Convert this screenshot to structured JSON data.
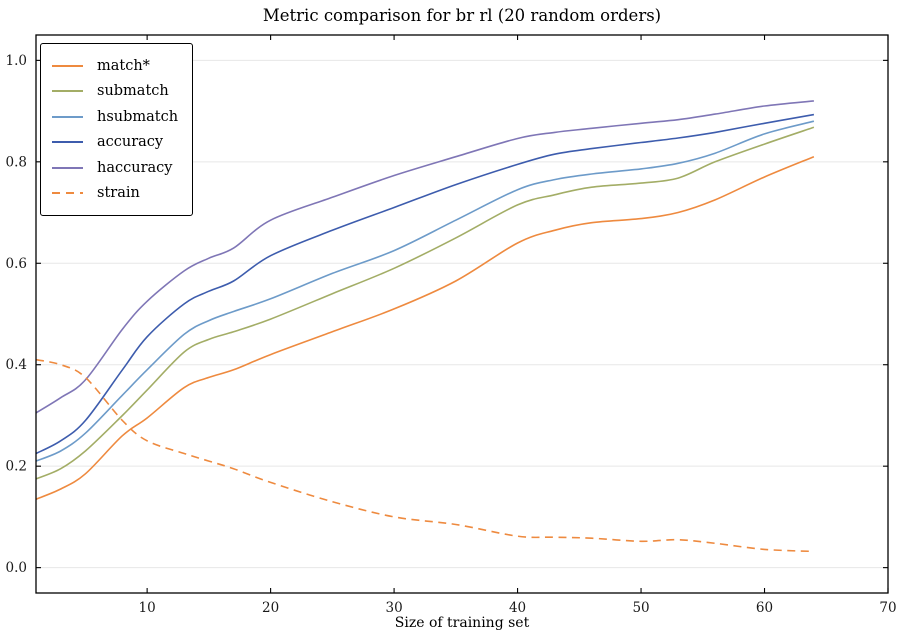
{
  "title": "Metric comparison for br rl (20 random orders)",
  "xlabel": "Size of training set",
  "chart_data": {
    "type": "line",
    "title": "Metric comparison for br rl (20 random orders)",
    "xlabel": "Size of training set",
    "ylabel": "",
    "xlim": [
      1,
      70
    ],
    "ylim": [
      -0.05,
      1.05
    ],
    "xticks": [
      10,
      20,
      30,
      40,
      50,
      60,
      70
    ],
    "xtick_labels": [
      "10",
      "20",
      "30",
      "40",
      "50",
      "60",
      "70"
    ],
    "yticks": [
      0.0,
      0.2,
      0.4,
      0.6,
      0.8,
      1.0
    ],
    "ytick_labels": [
      "0.0",
      "0.2",
      "0.4",
      "0.6",
      "0.8",
      "1.0"
    ],
    "grid": "horizontal",
    "grid_color": "#e7e7e7",
    "frame_color": "#000000",
    "legend_position": "upper-left",
    "x": [
      1,
      3,
      5,
      8,
      10,
      13,
      15,
      17,
      20,
      25,
      30,
      35,
      40,
      43,
      46,
      50,
      53,
      56,
      60,
      64
    ],
    "series": [
      {
        "name": "match*",
        "color": "#ee8a3f",
        "style": "solid",
        "values": [
          0.135,
          0.155,
          0.185,
          0.26,
          0.295,
          0.355,
          0.375,
          0.39,
          0.42,
          0.465,
          0.51,
          0.565,
          0.64,
          0.665,
          0.68,
          0.688,
          0.7,
          0.725,
          0.77,
          0.81
        ]
      },
      {
        "name": "submatch",
        "color": "#a3ad66",
        "style": "solid",
        "values": [
          0.175,
          0.195,
          0.23,
          0.3,
          0.35,
          0.425,
          0.45,
          0.465,
          0.49,
          0.54,
          0.59,
          0.65,
          0.715,
          0.735,
          0.75,
          0.758,
          0.768,
          0.8,
          0.835,
          0.868
        ]
      },
      {
        "name": "hsubmatch",
        "color": "#6d9bc9",
        "style": "solid",
        "values": [
          0.21,
          0.23,
          0.265,
          0.34,
          0.39,
          0.46,
          0.487,
          0.505,
          0.53,
          0.58,
          0.625,
          0.685,
          0.745,
          0.765,
          0.776,
          0.786,
          0.797,
          0.817,
          0.855,
          0.88
        ]
      },
      {
        "name": "accuracy",
        "color": "#3d5cad",
        "style": "solid",
        "values": [
          0.225,
          0.25,
          0.29,
          0.39,
          0.455,
          0.52,
          0.545,
          0.565,
          0.615,
          0.665,
          0.71,
          0.755,
          0.795,
          0.815,
          0.826,
          0.838,
          0.847,
          0.858,
          0.876,
          0.893
        ]
      },
      {
        "name": "haccuracy",
        "color": "#7f76b6",
        "style": "solid",
        "values": [
          0.305,
          0.335,
          0.37,
          0.47,
          0.525,
          0.585,
          0.61,
          0.63,
          0.685,
          0.73,
          0.773,
          0.81,
          0.846,
          0.858,
          0.866,
          0.876,
          0.883,
          0.894,
          0.91,
          0.92
        ]
      },
      {
        "name": "strain",
        "color": "#ee8a3f",
        "style": "dashed",
        "values": [
          0.41,
          0.4,
          0.375,
          0.29,
          0.25,
          0.225,
          0.21,
          0.195,
          0.168,
          0.13,
          0.1,
          0.085,
          0.062,
          0.06,
          0.058,
          0.052,
          0.055,
          0.048,
          0.036,
          0.032
        ]
      }
    ]
  }
}
